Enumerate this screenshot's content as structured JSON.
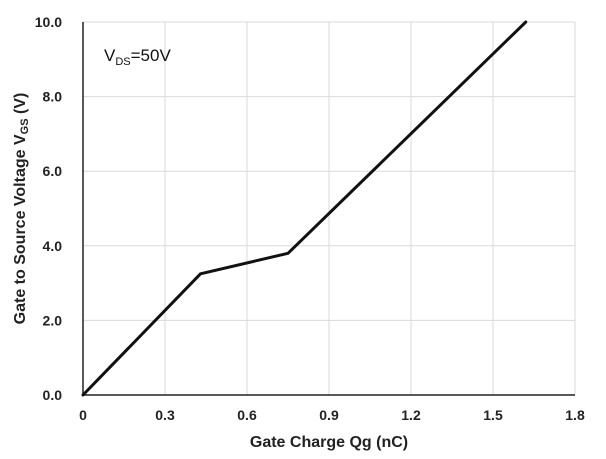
{
  "chart_data": {
    "type": "line",
    "title": "",
    "xlabel": "Gate Charge Qg (nC)",
    "ylabel": {
      "prefix": "Gate to  Source  Voltage V",
      "sub": "GS",
      "suffix": " (V)"
    },
    "annotation": {
      "main": "V",
      "sub": "DS",
      "rest": "=50V"
    },
    "xlim": [
      0,
      1.8
    ],
    "ylim": [
      0,
      10
    ],
    "x_ticks": [
      0,
      0.3,
      0.6,
      0.9,
      1.2,
      1.5,
      1.8
    ],
    "x_tick_labels": [
      "0",
      "0.3",
      "0.6",
      "0.9",
      "1.2",
      "1.5",
      "1.8"
    ],
    "y_ticks": [
      0,
      2,
      4,
      6,
      8,
      10
    ],
    "y_tick_labels": [
      "0.0",
      "2.0",
      "4.0",
      "6.0",
      "8.0",
      "10.0"
    ],
    "grid": true,
    "series": [
      {
        "x": [
          0,
          0.43,
          0.75,
          1.62
        ],
        "y": [
          0,
          3.25,
          3.8,
          10.0
        ],
        "color": "#111111"
      }
    ],
    "colors": {
      "line": "#111111",
      "grid": "#d9d9d9",
      "axis": "#222222"
    }
  }
}
